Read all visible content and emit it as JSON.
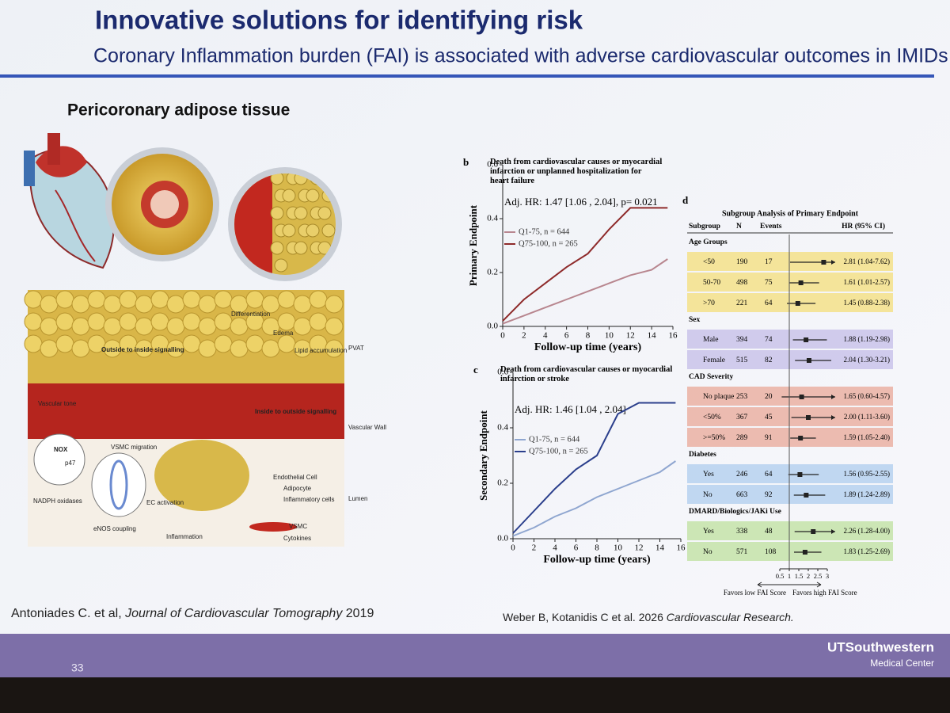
{
  "header": {
    "title": "Innovative solutions for identifying risk",
    "subtitle": "Coronary Inflammation burden (FAI) is associated with adverse cardiovascular outcomes in IMIDs"
  },
  "left_panel": {
    "heading": "Pericoronary adipose tissue",
    "diagram_labels": [
      "Differentiation",
      "Edema",
      "Lipid accumulation",
      "Outside to inside signalling",
      "Inside to outside signalling",
      "Vascular tone",
      "VSMC migration",
      "NADPH oxidases",
      "eNOS coupling",
      "EC activation",
      "Inflammation",
      "Endothelial Cell",
      "Adipocyte",
      "Inflammatory cells",
      "VSMC",
      "Cytokines",
      "PVAT",
      "Vascular Wall",
      "Lumen",
      "NOX",
      "p47"
    ],
    "citation": {
      "authors": "Antoniades C. et al,",
      "journal": "Journal of Cardiovascular Tomography",
      "year": "2019"
    }
  },
  "right_citation": {
    "authors": "Weber B, Kotanidis C et al. 2026",
    "journal": "Cardiovascular Research."
  },
  "footer": {
    "page_number": "33",
    "logo_name": "UTSouthwestern",
    "logo_sub": "Medical Center"
  },
  "chart_data": [
    {
      "type": "line",
      "panel": "b",
      "title": "Death from cardiovascular causes or myocardial infarction or unplanned hospitalization for heart failure",
      "annotation": "Adj. HR: 1.47 [1.06 , 2.04], p= 0.021",
      "x_label": "Follow-up time (years)",
      "y_label": "Primary Endpoint",
      "x": [
        0,
        2,
        4,
        6,
        8,
        10,
        12,
        14,
        15.5
      ],
      "series": [
        {
          "name": "Q1-75, n = 644",
          "color": "#b8868f",
          "values": [
            0.01,
            0.04,
            0.07,
            0.1,
            0.13,
            0.16,
            0.19,
            0.21,
            0.25
          ]
        },
        {
          "name": "Q75-100, n = 265",
          "color": "#8e2a2a",
          "values": [
            0.02,
            0.1,
            0.16,
            0.22,
            0.27,
            0.36,
            0.44,
            0.44,
            0.44
          ]
        }
      ],
      "xlim": [
        0,
        16
      ],
      "xticks": [
        0,
        2,
        4,
        6,
        8,
        10,
        12,
        14,
        16
      ],
      "ylim": [
        0,
        0.6
      ],
      "yticks": [
        {
          "value": 0,
          "label": "0.0"
        },
        0.2,
        0.4,
        0.6
      ]
    },
    {
      "type": "line",
      "panel": "c",
      "title": "Death from cardiovascular causes or myocardial infarction or stroke",
      "annotation": "Adj. HR: 1.46 [1.04 , 2.04]",
      "x_label": "Follow-up time (years)",
      "y_label": "Secondary Endpoint",
      "x": [
        0,
        2,
        4,
        6,
        8,
        10,
        12,
        14,
        15.5
      ],
      "series": [
        {
          "name": "Q1-75, n = 644",
          "color": "#8fa6d0",
          "values": [
            0.01,
            0.04,
            0.08,
            0.11,
            0.15,
            0.18,
            0.21,
            0.24,
            0.28
          ]
        },
        {
          "name": "Q75-100, n = 265",
          "color": "#2b3f8c",
          "values": [
            0.02,
            0.1,
            0.18,
            0.25,
            0.3,
            0.45,
            0.49,
            0.49,
            0.49
          ]
        }
      ],
      "xlim": [
        0,
        16
      ],
      "xticks": [
        0,
        2,
        4,
        6,
        8,
        10,
        12,
        14,
        16
      ],
      "ylim": [
        0,
        0.6
      ],
      "yticks": [
        {
          "value": 0,
          "label": "0.0"
        },
        0.2,
        0.4,
        0.6
      ]
    },
    {
      "type": "forest",
      "panel": "d",
      "title": "Subgroup Analysis of Primary Endpoint",
      "columns": [
        "Subgroup",
        "N",
        "Events",
        "HR (95% CI)"
      ],
      "groups": [
        {
          "name": "Age Groups",
          "color": "#f3e08a",
          "rows": [
            {
              "label": "<50",
              "n": 190,
              "events": 17,
              "hr": 2.81,
              "lo": 1.04,
              "hi": 7.62,
              "hr_label": "2.81 (1.04-7.62)"
            },
            {
              "label": "50-70",
              "n": 498,
              "events": 75,
              "hr": 1.61,
              "lo": 1.01,
              "hi": 2.57,
              "hr_label": "1.61 (1.01-2.57)"
            },
            {
              "label": ">70",
              "n": 221,
              "events": 64,
              "hr": 1.45,
              "lo": 0.88,
              "hi": 2.38,
              "hr_label": "1.45 (0.88-2.38)"
            }
          ]
        },
        {
          "name": "Sex",
          "color": "#c9c3ea",
          "rows": [
            {
              "label": "Male",
              "n": 394,
              "events": 74,
              "hr": 1.88,
              "lo": 1.19,
              "hi": 2.98,
              "hr_label": "1.88 (1.19-2.98)"
            },
            {
              "label": "Female",
              "n": 515,
              "events": 82,
              "hr": 2.04,
              "lo": 1.3,
              "hi": 3.21,
              "hr_label": "2.04 (1.30-3.21)"
            }
          ]
        },
        {
          "name": "CAD Severity",
          "color": "#eab0a2",
          "rows": [
            {
              "label": "No plaque",
              "n": 253,
              "events": 20,
              "hr": 1.65,
              "lo": 0.6,
              "hi": 4.57,
              "hr_label": "1.65 (0.60-4.57)"
            },
            {
              "label": "<50%",
              "n": 367,
              "events": 45,
              "hr": 2.0,
              "lo": 1.11,
              "hi": 3.6,
              "hr_label": "2.00 (1.11-3.60)"
            },
            {
              "label": ">=50%",
              "n": 289,
              "events": 91,
              "hr": 1.59,
              "lo": 1.05,
              "hi": 2.4,
              "hr_label": "1.59 (1.05-2.40)"
            }
          ]
        },
        {
          "name": "Diabetes",
          "color": "#b6d1ef",
          "rows": [
            {
              "label": "Yes",
              "n": 246,
              "events": 64,
              "hr": 1.56,
              "lo": 0.95,
              "hi": 2.55,
              "hr_label": "1.56 (0.95-2.55)"
            },
            {
              "label": "No",
              "n": 663,
              "events": 92,
              "hr": 1.89,
              "lo": 1.24,
              "hi": 2.89,
              "hr_label": "1.89 (1.24-2.89)"
            }
          ]
        },
        {
          "name": "DMARD/Biologics/JAKi Use",
          "color": "#c4e3a8",
          "rows": [
            {
              "label": "Yes",
              "n": 338,
              "events": 48,
              "hr": 2.26,
              "lo": 1.28,
              "hi": 4.0,
              "hr_label": "2.26 (1.28-4.00)"
            },
            {
              "label": "No",
              "n": 571,
              "events": 108,
              "hr": 1.83,
              "lo": 1.25,
              "hi": 2.69,
              "hr_label": "1.83 (1.25-2.69)"
            }
          ]
        }
      ],
      "ref_line": 1,
      "xlim": [
        0.5,
        3
      ],
      "xticks": [
        0.5,
        1,
        1.5,
        2,
        2.5,
        3
      ],
      "left_note": "Favors low FAI Score",
      "right_note": "Favors high FAI Score"
    }
  ]
}
